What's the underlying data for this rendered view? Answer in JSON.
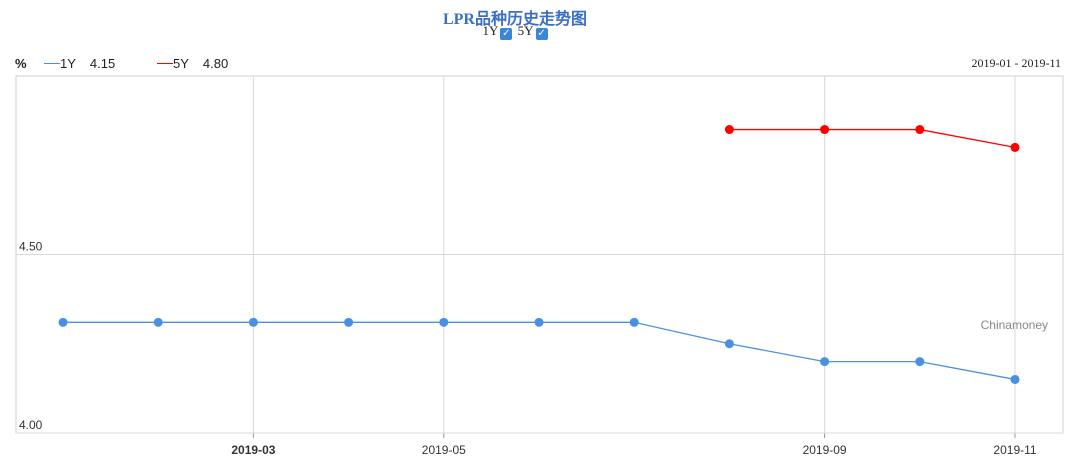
{
  "chart_data": {
    "type": "line",
    "title": "LPR品种历史走势图",
    "unit": "%",
    "date_range": "2019-01 - 2019-11",
    "x": [
      "2019-01",
      "2019-02",
      "2019-03",
      "2019-04",
      "2019-05",
      "2019-06",
      "2019-07",
      "2019-08",
      "2019-09",
      "2019-10",
      "2019-11"
    ],
    "x_tick_labels": [
      {
        "x": "2019-03",
        "label": "2019-03",
        "bold": true
      },
      {
        "x": "2019-05",
        "label": "2019-05",
        "bold": false
      },
      {
        "x": "2019-09",
        "label": "2019-09",
        "bold": false
      },
      {
        "x": "2019-11",
        "label": "2019-11",
        "bold": false
      }
    ],
    "y_ticks": [
      {
        "value": 4.0,
        "label": "4.00"
      },
      {
        "value": 4.5,
        "label": "4.50"
      }
    ],
    "ylim": [
      4.0,
      5.0
    ],
    "grid": true,
    "legend_position": "top-left",
    "series": [
      {
        "name": "1Y",
        "latest": "4.15",
        "color": "#4a90e2",
        "values": [
          4.31,
          4.31,
          4.31,
          4.31,
          4.31,
          4.31,
          4.31,
          4.25,
          4.2,
          4.2,
          4.15
        ]
      },
      {
        "name": "5Y",
        "latest": "4.80",
        "color": "#ff0000",
        "values": [
          null,
          null,
          null,
          null,
          null,
          null,
          null,
          4.85,
          4.85,
          4.85,
          4.8
        ]
      }
    ],
    "watermark": "Chinamoney"
  },
  "toggles": [
    {
      "label": "1Y",
      "checked": true
    },
    {
      "label": "5Y",
      "checked": true
    }
  ]
}
